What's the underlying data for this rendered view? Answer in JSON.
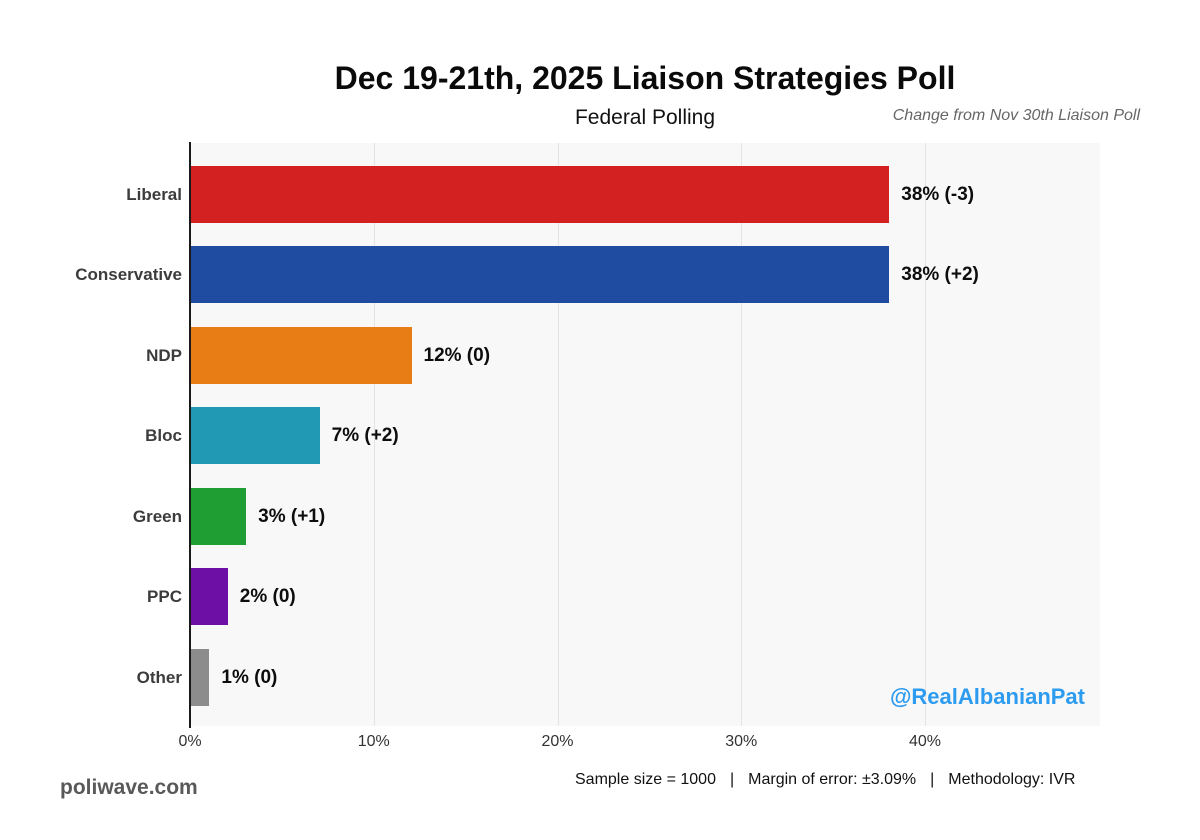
{
  "header": {
    "title": "Dec 19-21th, 2025 Liaison Strategies Poll",
    "subtitle": "Federal Polling",
    "change_caption": "Change from Nov 30th Liaison Poll"
  },
  "chart_data": {
    "type": "bar",
    "orientation": "horizontal",
    "title": "Dec 19-21th, 2025 Liaison Strategies Poll",
    "subtitle": "Federal Polling",
    "annotation": "Change from Nov 30th Liaison Poll",
    "categories": [
      "Liberal",
      "Conservative",
      "NDP",
      "Bloc",
      "Green",
      "PPC",
      "Other"
    ],
    "values": [
      38,
      38,
      12,
      7,
      3,
      2,
      1
    ],
    "changes": [
      -3,
      2,
      0,
      2,
      1,
      0,
      0
    ],
    "value_labels": [
      "38% (-3)",
      "38% (+2)",
      "12% (0)",
      "7% (+2)",
      "3% (+1)",
      "2% (0)",
      "1% (0)"
    ],
    "bar_colors": [
      "#d32121",
      "#1f4ba0",
      "#e87d15",
      "#2199b4",
      "#1f9e33",
      "#6d0fa5",
      "#8c8c8c"
    ],
    "x_ticks": [
      0,
      10,
      20,
      30,
      40
    ],
    "x_tick_labels": [
      "0%",
      "10%",
      "20%",
      "30%",
      "40%"
    ],
    "xlim": [
      0,
      49.5
    ],
    "xlabel": "",
    "ylabel": "",
    "grid": "vertical-major-only",
    "legend": "none",
    "plot_background": "#f8f8f8",
    "gridline_color": "#e3e3e3"
  },
  "watermark": {
    "handle": "@RealAlbanianPat",
    "color": "#2d9bf0"
  },
  "footer": {
    "items": [
      "Sample size = 1000",
      "Margin of error: ±3.09%",
      "Methodology: IVR"
    ],
    "separator": "|",
    "site": "poliwave.com"
  }
}
